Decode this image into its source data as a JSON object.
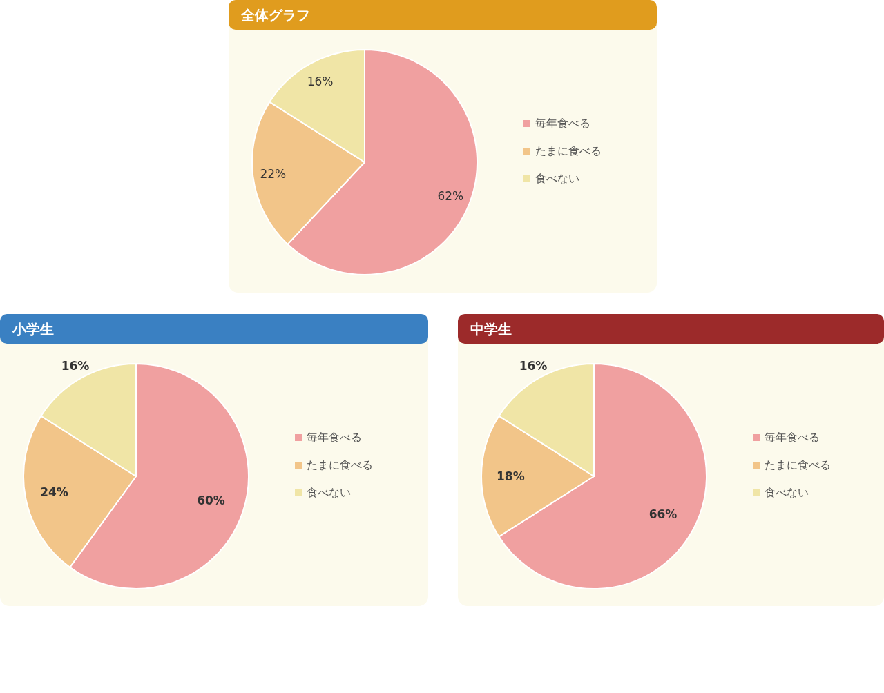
{
  "chart_data": [
    {
      "type": "pie",
      "title": "全体グラフ",
      "categories": [
        "毎年食べる",
        "たまに食べる",
        "食べない"
      ],
      "values": [
        62,
        22,
        16
      ],
      "colors": [
        "#f0a0a0",
        "#f2c589",
        "#f0e5a6"
      ],
      "value_labels": [
        "62%",
        "22%",
        "16%"
      ],
      "legend": "right"
    },
    {
      "type": "pie",
      "title": "小学生",
      "categories": [
        "毎年食べる",
        "たまに食べる",
        "食べない"
      ],
      "values": [
        60,
        24,
        16
      ],
      "colors": [
        "#f0a0a0",
        "#f2c589",
        "#f0e5a6"
      ],
      "value_labels": [
        "60%",
        "24%",
        "16%"
      ],
      "legend": "right"
    },
    {
      "type": "pie",
      "title": "中学生",
      "categories": [
        "毎年食べる",
        "たまに食べる",
        "食べない"
      ],
      "values": [
        66,
        18,
        16
      ],
      "colors": [
        "#f0a0a0",
        "#f2c589",
        "#f0e5a6"
      ],
      "value_labels": [
        "66%",
        "18%",
        "16%"
      ],
      "legend": "right"
    }
  ]
}
